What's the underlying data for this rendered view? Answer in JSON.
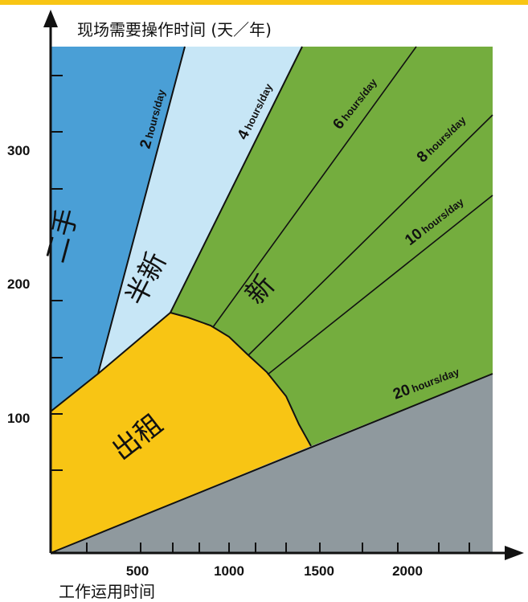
{
  "chart_data": {
    "type": "area",
    "y_axis_label": "现场需要操作时间 (天／年)",
    "x_axis_label": "工作运用时间",
    "y_ticks": [
      "100",
      "200",
      "300"
    ],
    "x_ticks": [
      "500",
      "1000",
      "1500",
      "2000"
    ],
    "regions": [
      {
        "label": "二手",
        "color": "#4a9fd6"
      },
      {
        "label": "半新",
        "color": "#c7e6f6"
      },
      {
        "label": "新",
        "color": "#74ad3e"
      },
      {
        "label": "出租",
        "color": "#f8c514"
      },
      {
        "label": "",
        "color": "#8f999e"
      }
    ],
    "usage_lines": [
      {
        "num": "2",
        "unit": "hours/day",
        "hours_per_day": 2
      },
      {
        "num": "4",
        "unit": "hours/day",
        "hours_per_day": 4
      },
      {
        "num": "6",
        "unit": "hours/day",
        "hours_per_day": 6
      },
      {
        "num": "8",
        "unit": "hours/day",
        "hours_per_day": 8
      },
      {
        "num": "10",
        "unit": "hours/day",
        "hours_per_day": 10
      },
      {
        "num": "20",
        "unit": "hours/day",
        "hours_per_day": 20
      }
    ],
    "grid": false
  },
  "colors": {
    "accent_bar": "#f8c514",
    "axis": "#111111"
  }
}
